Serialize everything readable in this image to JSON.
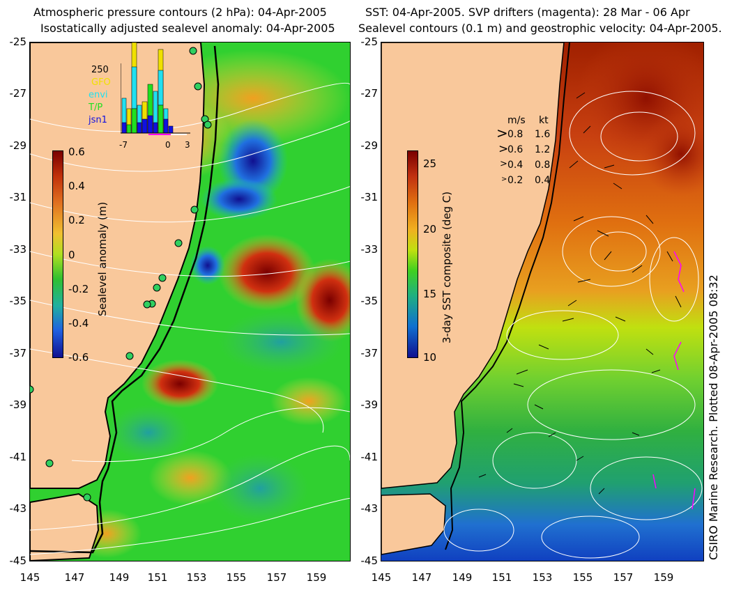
{
  "left_panel": {
    "title_line1": "Atmospheric pressure contours (2 hPa): 04-Apr-2005",
    "title_line2": "Isostatically adjusted sealevel anomaly: 04-Apr-2005",
    "colorbar": {
      "label": "Sealevel anomaly (m)",
      "ticks": [
        "0.6",
        "0.4",
        "0.2",
        "0",
        "-0.2",
        "-0.4",
        "-0.6"
      ],
      "colors": [
        "#7a0000",
        "#c0300a",
        "#e07020",
        "#f0c030",
        "#b0e020",
        "#30c030",
        "#20b0a0",
        "#2060e0",
        "#101090"
      ]
    },
    "inset": {
      "y_label": "250",
      "legend": [
        {
          "name": "GFO",
          "color": "#f0e000"
        },
        {
          "name": "envi",
          "color": "#20e0f0"
        },
        {
          "name": "T/P",
          "color": "#20e020"
        },
        {
          "name": "jsn1",
          "color": "#1010e0"
        }
      ],
      "x_ticks": [
        "-7",
        "0",
        "3"
      ]
    }
  },
  "right_panel": {
    "title_line1": "SST: 04-Apr-2005. SVP drifters (magenta): 28 Mar - 06 Apr",
    "title_line2": "Sealevel contours (0.1 m) and geostrophic velocity: 04-Apr-2005.",
    "colorbar": {
      "label": "3-day SST composite (deg C)",
      "ticks": [
        "25",
        "20",
        "15",
        "10"
      ],
      "colors": [
        "#7a0000",
        "#c03010",
        "#e07010",
        "#f0b020",
        "#c0e010",
        "#40d020",
        "#20b080",
        "#1070d0",
        "#101090"
      ]
    },
    "velocity_key": {
      "header_ms": "m/s",
      "header_kt": "kt",
      "rows": [
        {
          "ms": "0.8",
          "kt": "1.6"
        },
        {
          "ms": "0.6",
          "kt": "1.2"
        },
        {
          "ms": "0.4",
          "kt": "0.8"
        },
        {
          "ms": "0.2",
          "kt": "0.4"
        }
      ]
    }
  },
  "axes": {
    "y_ticks": [
      "-25",
      "-27",
      "-29",
      "-31",
      "-33",
      "-35",
      "-37",
      "-39",
      "-41",
      "-43",
      "-45"
    ],
    "x_ticks": [
      "145",
      "147",
      "149",
      "151",
      "153",
      "155",
      "157",
      "159"
    ]
  },
  "credit": "CSIRO Marine Research. Plotted 08-Apr-2005 08:32",
  "colors": {
    "land": "#f9c89b",
    "ocean_base": "#30d030",
    "contour": "#ffffff",
    "drifter": "#ff00ff"
  }
}
